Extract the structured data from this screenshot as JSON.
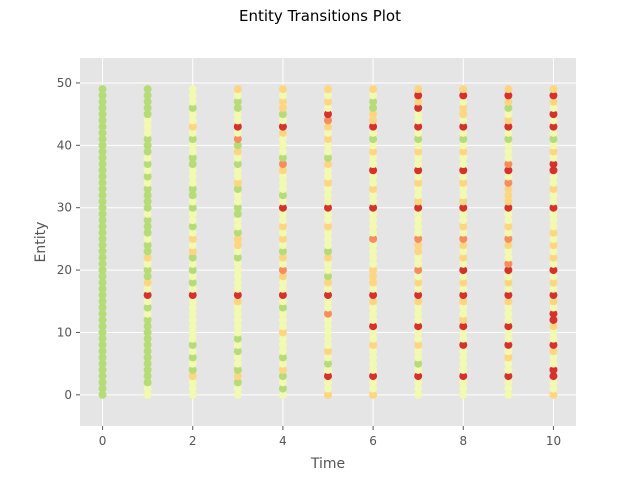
{
  "chart_data": {
    "type": "scatter",
    "title": "Entity Transitions Plot",
    "xlabel": "Time",
    "ylabel": "Entity",
    "xlim": [
      -0.5,
      10.5
    ],
    "ylim": [
      -5,
      54
    ],
    "xticks": [
      0,
      2,
      4,
      6,
      8,
      10
    ],
    "yticks": [
      0,
      10,
      20,
      30,
      40,
      50
    ],
    "grid": true,
    "style": "ggplot",
    "colors": {
      "state_1": "#b5dc76",
      "state_2": "#f2f9b0",
      "state_3": "#fdd67f",
      "state_4": "#f88c5b",
      "state_5": "#d7312b"
    },
    "entities": [
      0,
      49
    ],
    "times": [
      0,
      1,
      2,
      3,
      4,
      5,
      6,
      7,
      8,
      9,
      10
    ],
    "state_by_time": [
      {
        "time": 0,
        "states": [
          1,
          1,
          1,
          1,
          1,
          1,
          1,
          1,
          1,
          1,
          1,
          1,
          1,
          1,
          1,
          1,
          1,
          1,
          1,
          1,
          1,
          1,
          1,
          1,
          1,
          1,
          1,
          1,
          1,
          1,
          1,
          1,
          1,
          1,
          1,
          1,
          1,
          1,
          1,
          1,
          1,
          1,
          1,
          1,
          1,
          1,
          1,
          1,
          1,
          1
        ]
      },
      {
        "time": 1,
        "states": [
          2,
          2,
          1,
          1,
          1,
          1,
          1,
          1,
          1,
          1,
          1,
          1,
          1,
          2,
          1,
          2,
          5,
          2,
          3,
          1,
          1,
          2,
          3,
          1,
          1,
          2,
          1,
          1,
          1,
          2,
          1,
          1,
          1,
          1,
          2,
          1,
          2,
          1,
          2,
          1,
          1,
          1,
          2,
          2,
          2,
          1,
          1,
          1,
          1,
          1
        ]
      },
      {
        "time": 2,
        "states": [
          2,
          2,
          2,
          3,
          1,
          2,
          1,
          2,
          1,
          2,
          2,
          2,
          2,
          2,
          2,
          2,
          5,
          2,
          1,
          2,
          1,
          2,
          1,
          3,
          2,
          3,
          2,
          1,
          2,
          2,
          1,
          2,
          1,
          1,
          2,
          2,
          2,
          1,
          1,
          2,
          2,
          1,
          2,
          3,
          2,
          2,
          1,
          2,
          2,
          2
        ]
      },
      {
        "time": 3,
        "states": [
          2,
          2,
          1,
          3,
          1,
          2,
          2,
          1,
          2,
          1,
          2,
          2,
          2,
          2,
          2,
          3,
          5,
          2,
          2,
          2,
          2,
          2,
          1,
          2,
          3,
          3,
          1,
          2,
          2,
          1,
          1,
          2,
          2,
          1,
          3,
          2,
          2,
          1,
          2,
          3,
          1,
          4,
          2,
          5,
          2,
          2,
          1,
          1,
          2,
          3
        ]
      },
      {
        "time": 4,
        "states": [
          2,
          1,
          2,
          1,
          3,
          2,
          1,
          2,
          2,
          2,
          3,
          2,
          2,
          2,
          1,
          2,
          5,
          2,
          2,
          3,
          4,
          2,
          3,
          1,
          2,
          3,
          2,
          3,
          2,
          2,
          5,
          2,
          1,
          2,
          2,
          2,
          3,
          4,
          1,
          2,
          2,
          2,
          3,
          5,
          2,
          1,
          3,
          3,
          2,
          3
        ]
      },
      {
        "time": 5,
        "states": [
          3,
          2,
          2,
          5,
          2,
          1,
          2,
          3,
          2,
          2,
          2,
          2,
          2,
          4,
          2,
          2,
          5,
          2,
          3,
          1,
          2,
          2,
          3,
          1,
          2,
          2,
          2,
          3,
          2,
          2,
          5,
          2,
          2,
          2,
          3,
          2,
          2,
          3,
          1,
          2,
          2,
          3,
          2,
          3,
          4,
          5,
          2,
          3,
          2,
          3
        ]
      },
      {
        "time": 6,
        "states": [
          3,
          2,
          2,
          5,
          2,
          2,
          2,
          2,
          3,
          2,
          2,
          5,
          2,
          2,
          2,
          3,
          5,
          2,
          3,
          3,
          3,
          2,
          2,
          2,
          2,
          4,
          2,
          2,
          2,
          2,
          5,
          2,
          2,
          3,
          2,
          2,
          5,
          2,
          2,
          3,
          2,
          1,
          2,
          5,
          3,
          3,
          1,
          1,
          2,
          3
        ]
      },
      {
        "time": 7,
        "states": [
          2,
          2,
          2,
          5,
          2,
          1,
          2,
          2,
          3,
          2,
          2,
          5,
          2,
          2,
          2,
          3,
          5,
          2,
          3,
          2,
          4,
          2,
          2,
          3,
          3,
          4,
          2,
          2,
          2,
          2,
          5,
          3,
          2,
          2,
          3,
          2,
          5,
          2,
          2,
          3,
          2,
          1,
          2,
          5,
          2,
          2,
          5,
          3,
          5,
          3
        ]
      },
      {
        "time": 8,
        "states": [
          2,
          2,
          2,
          5,
          2,
          2,
          2,
          2,
          5,
          2,
          2,
          5,
          3,
          2,
          2,
          3,
          5,
          2,
          3,
          2,
          5,
          2,
          3,
          2,
          3,
          4,
          2,
          3,
          2,
          2,
          5,
          3,
          2,
          2,
          3,
          2,
          5,
          2,
          2,
          3,
          2,
          1,
          2,
          5,
          2,
          3,
          3,
          2,
          5,
          3
        ]
      },
      {
        "time": 9,
        "states": [
          2,
          2,
          2,
          5,
          2,
          2,
          3,
          2,
          5,
          2,
          2,
          5,
          2,
          2,
          2,
          3,
          5,
          2,
          3,
          2,
          5,
          4,
          2,
          2,
          3,
          4,
          2,
          3,
          2,
          2,
          5,
          3,
          3,
          3,
          4,
          2,
          5,
          4,
          2,
          2,
          2,
          1,
          2,
          5,
          3,
          2,
          1,
          3,
          5,
          3
        ]
      },
      {
        "time": 10,
        "states": [
          3,
          2,
          2,
          5,
          5,
          2,
          2,
          3,
          5,
          2,
          2,
          3,
          5,
          5,
          2,
          3,
          5,
          2,
          3,
          2,
          5,
          2,
          3,
          2,
          3,
          2,
          3,
          2,
          2,
          2,
          5,
          2,
          2,
          3,
          2,
          2,
          5,
          5,
          2,
          3,
          2,
          1,
          2,
          5,
          2,
          5,
          2,
          3,
          5,
          3
        ]
      }
    ]
  }
}
